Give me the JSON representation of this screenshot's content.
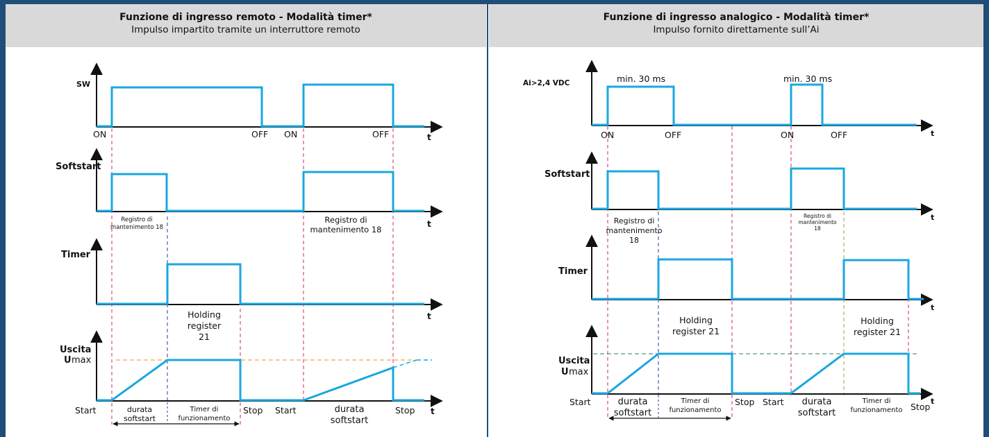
{
  "colors": {
    "frame": "#1f4e79",
    "header_bg": "#d9d9d9",
    "signal": "#1aa7e0",
    "magenta_guide": "#d6246e",
    "blue_guide": "#1f3f9e",
    "orange_guide": "#f08c1e",
    "green_guide": "#2e7d4f",
    "olive_guide": "#8fa63a"
  },
  "left": {
    "title": "Funzione di ingresso remoto - Modalità timer*",
    "subtitle": "Impulso impartito tramite un interruttore remoto",
    "y_labels": {
      "sw": "SW",
      "softstart": "Softstart",
      "timer": "Timer",
      "uscita": "Uscita",
      "umax_u": "U",
      "umax_rest": "max"
    },
    "axis_t": "t",
    "sw_on_1": "ON",
    "sw_off_1": "OFF",
    "sw_on_2": "ON",
    "sw_off_2": "OFF",
    "reg18_small_line1": "Registro di",
    "reg18_small_line2": "mantenimento 18",
    "reg18_line1": "Registro di",
    "reg18_line2": "mantenimento 18",
    "hold21_line1": "Holding",
    "hold21_line2": "register",
    "hold21_line3": "21",
    "start_1": "Start",
    "stop_1": "Stop",
    "start_2": "Start",
    "stop_2": "Stop",
    "durata_1_line1": "durata",
    "durata_1_line2": "softstart",
    "timer_fun_line1": "Timer di",
    "timer_fun_line2": "funzionamento",
    "durata_2_line1": "durata",
    "durata_2_line2": "softstart"
  },
  "right": {
    "title": "Funzione di ingresso analogico - Modalità timer*",
    "subtitle": "Impulso fornito direttamente sull’Ai",
    "y_labels": {
      "ai": "Ai>2,4 VDC",
      "softstart": "Softstart",
      "timer": "Timer",
      "uscita": "Uscita",
      "umax_u": "U",
      "umax_rest": "max"
    },
    "axis_t": "t",
    "min_30_1": "min. 30 ms",
    "min_30_2": "min. 30 ms",
    "ai_on_1": "ON",
    "ai_off_1": "OFF",
    "ai_on_2": "ON",
    "ai_off_2": "OFF",
    "reg18_line1": "Registro di",
    "reg18_line2": "mantenimento",
    "reg18_line3": "18",
    "reg18_small_line1": "Registro di",
    "reg18_small_line2": "mantenimento",
    "reg18_small_line3": "18",
    "hold21a_line1": "Holding",
    "hold21a_line2": "register 21",
    "hold21b_line1": "Holding",
    "hold21b_line2": "register 21",
    "start_1": "Start",
    "stop_1": "Stop",
    "start_2": "Start",
    "stop_2": "Stop",
    "durata_line1": "durata",
    "durata_line2": "softstart",
    "timer_fun_1_line1": "Timer di",
    "timer_fun_1_line2": "funzionamento",
    "durata_2_line1": "durata",
    "durata_2_line2": "softstart",
    "timer_fun_2_line1": "Timer di",
    "timer_fun_2_line2": "funzionamento"
  }
}
